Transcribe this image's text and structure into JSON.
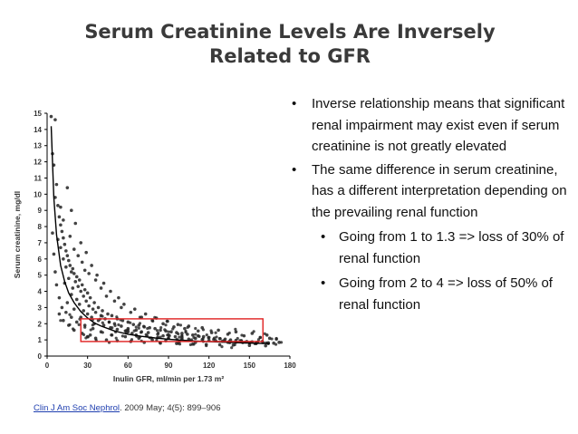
{
  "slide": {
    "title_line1": "Serum Creatinine Levels Are Inversely",
    "title_line2": "Related to GFR"
  },
  "bullets": [
    {
      "level": 1,
      "text": "Inverse relationship means that significant renal impairment may exist even if serum creatinine is not greatly elevated"
    },
    {
      "level": 1,
      "text": "The same difference in serum creatinine, has a different interpretation depending on the prevailing renal function"
    },
    {
      "level": 2,
      "text": "Going from 1 to 1.3 => loss of 30% of renal function"
    },
    {
      "level": 2,
      "text": "Going from 2 to 4 => loss of 50% of renal function"
    }
  ],
  "bullet_symbol": "•",
  "citation": {
    "link_text": "Clin J Am Soc Nephrol",
    "rest": ". 2009 May; 4(5): 899–906",
    "link_color": "#1f3fb0"
  },
  "chart_data": {
    "type": "scatter",
    "xlabel": "Inulin GFR, ml/min per 1.73 m²",
    "ylabel": "Serum creatinine, mg/dl",
    "xlim": [
      0,
      180
    ],
    "ylim": [
      0,
      15
    ],
    "xticks": [
      0,
      30,
      60,
      90,
      120,
      150,
      180
    ],
    "yticks": [
      0,
      1,
      2,
      3,
      4,
      5,
      6,
      7,
      8,
      9,
      10,
      11,
      12,
      13,
      14,
      15
    ],
    "grid": false,
    "point_color": "#222222",
    "curve": {
      "name": "",
      "x": [
        3,
        5,
        7,
        10,
        13,
        16,
        20,
        25,
        30,
        35,
        40,
        50,
        60,
        70,
        80,
        90,
        100,
        110,
        120,
        130,
        140,
        150,
        160,
        165
      ],
      "y": [
        14.2,
        9.8,
        7.5,
        5.6,
        4.6,
        3.9,
        3.3,
        2.75,
        2.35,
        2.05,
        1.85,
        1.55,
        1.35,
        1.22,
        1.12,
        1.04,
        0.98,
        0.93,
        0.89,
        0.86,
        0.83,
        0.8,
        0.78,
        0.77
      ],
      "color": "#000000"
    },
    "highlight_box": {
      "x0": 25,
      "x1": 160,
      "y0": 0.9,
      "y1": 2.3,
      "color": "#e02020"
    },
    "points": [
      [
        3,
        14.8
      ],
      [
        6,
        14.6
      ],
      [
        4,
        12.5
      ],
      [
        5,
        11.8
      ],
      [
        7,
        10.6
      ],
      [
        6,
        9.8
      ],
      [
        8,
        9.3
      ],
      [
        9,
        8.6
      ],
      [
        10,
        8.1
      ],
      [
        11,
        7.7
      ],
      [
        12,
        7.3
      ],
      [
        8,
        7.2
      ],
      [
        13,
        6.9
      ],
      [
        10,
        6.7
      ],
      [
        14,
        6.5
      ],
      [
        15,
        6.2
      ],
      [
        12,
        6.0
      ],
      [
        16,
        5.9
      ],
      [
        17,
        5.6
      ],
      [
        19,
        5.4
      ],
      [
        14,
        5.5
      ],
      [
        18,
        5.2
      ],
      [
        20,
        5.1
      ],
      [
        22,
        4.9
      ],
      [
        16,
        4.8
      ],
      [
        24,
        4.7
      ],
      [
        21,
        4.6
      ],
      [
        13,
        4.5
      ],
      [
        26,
        4.4
      ],
      [
        23,
        4.3
      ],
      [
        19,
        4.2
      ],
      [
        28,
        4.1
      ],
      [
        25,
        4.0
      ],
      [
        30,
        3.9
      ],
      [
        18,
        3.8
      ],
      [
        27,
        3.7
      ],
      [
        32,
        3.6
      ],
      [
        22,
        3.5
      ],
      [
        29,
        3.4
      ],
      [
        35,
        3.3
      ],
      [
        15,
        3.3
      ],
      [
        24,
        3.2
      ],
      [
        31,
        3.1
      ],
      [
        38,
        3.0
      ],
      [
        20,
        2.9
      ],
      [
        34,
        2.9
      ],
      [
        27,
        2.8
      ],
      [
        41,
        2.8
      ],
      [
        36,
        2.7
      ],
      [
        45,
        2.6
      ],
      [
        30,
        2.6
      ],
      [
        40,
        2.5
      ],
      [
        48,
        2.5
      ],
      [
        25,
        2.4
      ],
      [
        33,
        2.4
      ],
      [
        43,
        2.3
      ],
      [
        52,
        2.3
      ],
      [
        38,
        2.2
      ],
      [
        56,
        2.2
      ],
      [
        46,
        2.1
      ],
      [
        60,
        2.1
      ],
      [
        35,
        2.0
      ],
      [
        50,
        2.0
      ],
      [
        64,
        1.95
      ],
      [
        42,
        1.9
      ],
      [
        68,
        1.9
      ],
      [
        55,
        1.85
      ],
      [
        72,
        1.8
      ],
      [
        47,
        1.75
      ],
      [
        76,
        1.75
      ],
      [
        60,
        1.7
      ],
      [
        80,
        1.7
      ],
      [
        52,
        1.65
      ],
      [
        84,
        1.6
      ],
      [
        66,
        1.6
      ],
      [
        88,
        1.55
      ],
      [
        58,
        1.55
      ],
      [
        92,
        1.5
      ],
      [
        70,
        1.5
      ],
      [
        96,
        1.45
      ],
      [
        75,
        1.45
      ],
      [
        100,
        1.4
      ],
      [
        63,
        1.4
      ],
      [
        104,
        1.35
      ],
      [
        82,
        1.35
      ],
      [
        108,
        1.3
      ],
      [
        90,
        1.3
      ],
      [
        112,
        1.25
      ],
      [
        86,
        1.25
      ],
      [
        116,
        1.2
      ],
      [
        95,
        1.2
      ],
      [
        120,
        1.15
      ],
      [
        100,
        1.15
      ],
      [
        124,
        1.1
      ],
      [
        110,
        1.1
      ],
      [
        128,
        1.08
      ],
      [
        105,
        1.05
      ],
      [
        132,
        1.05
      ],
      [
        115,
        1.02
      ],
      [
        136,
        1.0
      ],
      [
        120,
        0.98
      ],
      [
        140,
        0.97
      ],
      [
        125,
        0.95
      ],
      [
        144,
        0.93
      ],
      [
        130,
        0.92
      ],
      [
        148,
        0.9
      ],
      [
        135,
        0.9
      ],
      [
        152,
        0.88
      ],
      [
        140,
        0.86
      ],
      [
        156,
        0.86
      ],
      [
        145,
        0.84
      ],
      [
        160,
        0.84
      ],
      [
        150,
        0.82
      ],
      [
        164,
        0.82
      ],
      [
        155,
        0.8
      ],
      [
        168,
        0.8
      ],
      [
        110,
        0.85
      ],
      [
        98,
        0.9
      ],
      [
        88,
        0.95
      ],
      [
        78,
        1.0
      ],
      [
        68,
        1.1
      ],
      [
        58,
        1.2
      ],
      [
        48,
        1.3
      ],
      [
        40,
        1.5
      ],
      [
        34,
        1.7
      ],
      [
        28,
        1.9
      ],
      [
        22,
        2.1
      ],
      [
        18,
        2.4
      ],
      [
        14,
        2.7
      ],
      [
        11,
        3.0
      ],
      [
        9,
        3.6
      ],
      [
        7,
        4.4
      ],
      [
        6,
        5.2
      ],
      [
        5,
        6.3
      ],
      [
        4,
        7.6
      ],
      [
        10,
        9.2
      ],
      [
        12,
        8.4
      ],
      [
        17,
        7.4
      ],
      [
        20,
        6.6
      ],
      [
        26,
        5.8
      ],
      [
        23,
        6.2
      ],
      [
        31,
        5.1
      ],
      [
        36,
        4.7
      ],
      [
        28,
        5.3
      ],
      [
        40,
        4.2
      ],
      [
        44,
        3.7
      ],
      [
        50,
        3.4
      ],
      [
        55,
        3.0
      ],
      [
        62,
        2.7
      ],
      [
        70,
        2.4
      ],
      [
        78,
        2.2
      ],
      [
        86,
        2.0
      ],
      [
        94,
        1.8
      ],
      [
        102,
        1.7
      ],
      [
        112,
        1.55
      ],
      [
        122,
        1.45
      ],
      [
        134,
        1.35
      ],
      [
        146,
        1.25
      ],
      [
        158,
        1.15
      ],
      [
        165,
        1.1
      ],
      [
        30,
        1.2
      ],
      [
        36,
        1.1
      ],
      [
        44,
        1.0
      ],
      [
        52,
        0.95
      ],
      [
        62,
        0.9
      ],
      [
        72,
        0.85
      ],
      [
        84,
        0.8
      ],
      [
        96,
        0.78
      ],
      [
        108,
        0.74
      ],
      [
        118,
        0.72
      ],
      [
        128,
        0.7
      ],
      [
        138,
        0.68
      ],
      [
        150,
        0.66
      ],
      [
        162,
        0.64
      ],
      [
        20,
        1.6
      ],
      [
        16,
        1.9
      ],
      [
        12,
        2.2
      ],
      [
        9,
        2.6
      ],
      [
        26,
        1.4
      ],
      [
        32,
        1.3
      ],
      [
        15,
        10.4
      ],
      [
        18,
        9.0
      ],
      [
        21,
        8.2
      ],
      [
        25,
        7.0
      ],
      [
        29,
        6.4
      ],
      [
        33,
        5.6
      ],
      [
        37,
        5.0
      ],
      [
        42,
        4.5
      ],
      [
        47,
        4.0
      ],
      [
        53,
        3.6
      ],
      [
        57,
        3.2
      ],
      [
        65,
        2.9
      ],
      [
        73,
        2.6
      ],
      [
        81,
        2.35
      ],
      [
        89,
        2.15
      ],
      [
        97,
        1.95
      ],
      [
        105,
        1.85
      ],
      [
        115,
        1.75
      ],
      [
        127,
        1.6
      ],
      [
        140,
        1.5
      ],
      [
        152,
        1.4
      ],
      [
        163,
        1.3
      ],
      [
        170,
        1.05
      ],
      [
        172,
        0.85
      ],
      [
        60,
        1.5
      ],
      [
        66,
        1.3
      ],
      [
        74,
        1.25
      ],
      [
        82,
        1.15
      ],
      [
        90,
        1.1
      ],
      [
        100,
        1.05
      ]
    ]
  }
}
